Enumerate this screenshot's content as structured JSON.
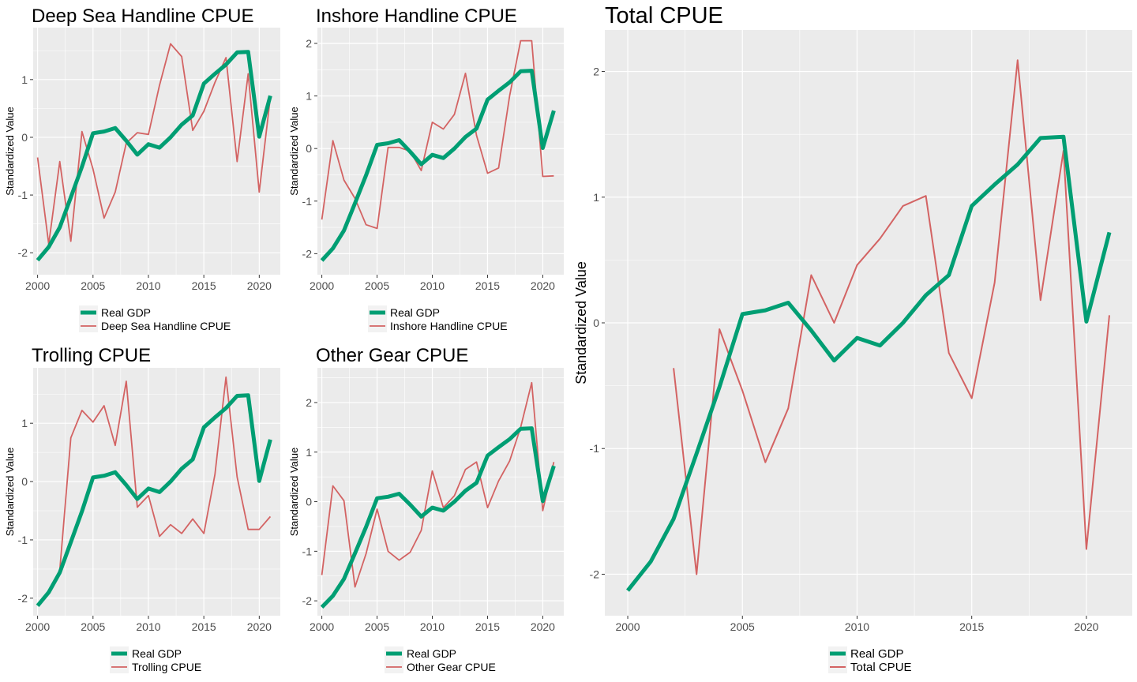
{
  "colors": {
    "gdp": "#009E73",
    "cpue": "#D36363",
    "panel_bg": "#EBEBEB",
    "grid": "#FFFFFF",
    "tick_text": "#4D4D4D",
    "text": "#000000"
  },
  "chart_data": [
    {
      "type": "line",
      "title": "Deep Sea Handline CPUE",
      "ylabel": "Standardized Value",
      "xlabel": "",
      "xlim": [
        1999.6,
        2021.9
      ],
      "ylim": [
        -2.38,
        1.9
      ],
      "x_ticks": [
        2000,
        2005,
        2010,
        2015,
        2020
      ],
      "y_ticks": [
        -2,
        -1,
        0,
        1
      ],
      "grid": true,
      "legend_position": "bottom",
      "series": [
        {
          "name": "Real GDP",
          "x": [
            2000,
            2001,
            2002,
            2003,
            2004,
            2005,
            2006,
            2007,
            2008,
            2009,
            2010,
            2011,
            2012,
            2013,
            2014,
            2015,
            2016,
            2017,
            2018,
            2019,
            2020,
            2021
          ],
          "y": [
            -2.13,
            -1.9,
            -1.56,
            -1.04,
            -0.51,
            0.07,
            0.1,
            0.16,
            -0.06,
            -0.3,
            -0.12,
            -0.18,
            0.0,
            0.22,
            0.38,
            0.93,
            1.1,
            1.26,
            1.47,
            1.48,
            0.01,
            0.72
          ]
        },
        {
          "name": "Deep Sea Handline CPUE",
          "x": [
            2000,
            2001,
            2002,
            2003,
            2004,
            2005,
            2006,
            2007,
            2008,
            2009,
            2010,
            2011,
            2012,
            2013,
            2014,
            2015,
            2016,
            2017,
            2018,
            2019,
            2020,
            2021
          ],
          "y": [
            -0.35,
            -1.85,
            -0.42,
            -1.8,
            0.1,
            -0.55,
            -1.4,
            -0.95,
            -0.1,
            0.08,
            0.05,
            0.9,
            1.62,
            1.4,
            0.12,
            0.45,
            0.95,
            1.38,
            -0.42,
            1.1,
            -0.95,
            0.7
          ]
        }
      ]
    },
    {
      "type": "line",
      "title": "Inshore Handline CPUE",
      "ylabel": "Standardized Value",
      "xlabel": "",
      "xlim": [
        1999.6,
        2021.9
      ],
      "ylim": [
        -2.4,
        2.3
      ],
      "x_ticks": [
        2000,
        2005,
        2010,
        2015,
        2020
      ],
      "y_ticks": [
        -2,
        -1,
        0,
        1,
        2
      ],
      "grid": true,
      "legend_position": "bottom",
      "series": [
        {
          "name": "Real GDP",
          "x": [
            2000,
            2001,
            2002,
            2003,
            2004,
            2005,
            2006,
            2007,
            2008,
            2009,
            2010,
            2011,
            2012,
            2013,
            2014,
            2015,
            2016,
            2017,
            2018,
            2019,
            2020,
            2021
          ],
          "y": [
            -2.13,
            -1.9,
            -1.56,
            -1.04,
            -0.51,
            0.07,
            0.1,
            0.16,
            -0.06,
            -0.3,
            -0.12,
            -0.18,
            0.0,
            0.22,
            0.38,
            0.93,
            1.1,
            1.26,
            1.47,
            1.48,
            0.01,
            0.72
          ]
        },
        {
          "name": "Inshore Handline CPUE",
          "x": [
            2000,
            2001,
            2002,
            2003,
            2004,
            2005,
            2006,
            2007,
            2008,
            2009,
            2010,
            2011,
            2012,
            2013,
            2014,
            2015,
            2016,
            2017,
            2018,
            2019,
            2020,
            2021
          ],
          "y": [
            -1.35,
            0.15,
            -0.6,
            -0.95,
            -1.45,
            -1.52,
            0.02,
            0.02,
            -0.05,
            -0.42,
            0.5,
            0.37,
            0.65,
            1.43,
            0.25,
            -0.47,
            -0.37,
            1.0,
            2.05,
            2.05,
            -0.53,
            -0.52
          ]
        }
      ]
    },
    {
      "type": "line",
      "title": "Trolling CPUE",
      "ylabel": "Standardized Value",
      "xlabel": "",
      "xlim": [
        1999.6,
        2021.9
      ],
      "ylim": [
        -2.3,
        1.95
      ],
      "x_ticks": [
        2000,
        2005,
        2010,
        2015,
        2020
      ],
      "y_ticks": [
        -2,
        -1,
        0,
        1
      ],
      "grid": true,
      "legend_position": "bottom",
      "series": [
        {
          "name": "Real GDP",
          "x": [
            2000,
            2001,
            2002,
            2003,
            2004,
            2005,
            2006,
            2007,
            2008,
            2009,
            2010,
            2011,
            2012,
            2013,
            2014,
            2015,
            2016,
            2017,
            2018,
            2019,
            2020,
            2021
          ],
          "y": [
            -2.13,
            -1.9,
            -1.56,
            -1.04,
            -0.51,
            0.07,
            0.1,
            0.16,
            -0.06,
            -0.3,
            -0.12,
            -0.18,
            0.0,
            0.22,
            0.38,
            0.93,
            1.1,
            1.26,
            1.47,
            1.48,
            0.01,
            0.72
          ]
        },
        {
          "name": "Trolling CPUE",
          "x": [
            2002,
            2003,
            2004,
            2005,
            2006,
            2007,
            2008,
            2009,
            2010,
            2011,
            2012,
            2013,
            2014,
            2015,
            2016,
            2017,
            2018,
            2019,
            2020,
            2021
          ],
          "y": [
            -1.52,
            0.75,
            1.22,
            1.02,
            1.3,
            0.62,
            1.72,
            -0.44,
            -0.24,
            -0.94,
            -0.74,
            -0.89,
            -0.64,
            -0.89,
            0.12,
            1.79,
            0.08,
            -0.82,
            -0.82,
            -0.6
          ]
        }
      ]
    },
    {
      "type": "line",
      "title": "Other Gear CPUE",
      "ylabel": "Standardized Value",
      "xlabel": "",
      "xlim": [
        1999.6,
        2021.9
      ],
      "ylim": [
        -2.3,
        2.7
      ],
      "x_ticks": [
        2000,
        2005,
        2010,
        2015,
        2020
      ],
      "y_ticks": [
        -2,
        -1,
        0,
        1,
        2
      ],
      "grid": true,
      "legend_position": "bottom",
      "series": [
        {
          "name": "Real GDP",
          "x": [
            2000,
            2001,
            2002,
            2003,
            2004,
            2005,
            2006,
            2007,
            2008,
            2009,
            2010,
            2011,
            2012,
            2013,
            2014,
            2015,
            2016,
            2017,
            2018,
            2019,
            2020,
            2021
          ],
          "y": [
            -2.13,
            -1.9,
            -1.56,
            -1.04,
            -0.51,
            0.07,
            0.1,
            0.16,
            -0.06,
            -0.3,
            -0.12,
            -0.18,
            0.0,
            0.22,
            0.38,
            0.93,
            1.1,
            1.26,
            1.47,
            1.48,
            0.01,
            0.72
          ]
        },
        {
          "name": "Other Gear CPUE",
          "x": [
            2000,
            2001,
            2002,
            2003,
            2004,
            2005,
            2006,
            2007,
            2008,
            2009,
            2010,
            2011,
            2012,
            2013,
            2014,
            2015,
            2016,
            2017,
            2018,
            2019,
            2020,
            2021
          ],
          "y": [
            -1.48,
            0.32,
            0.02,
            -1.72,
            -1.05,
            -0.15,
            -1.0,
            -1.18,
            -1.02,
            -0.58,
            0.62,
            -0.12,
            0.12,
            0.65,
            0.8,
            -0.12,
            0.42,
            0.82,
            1.5,
            2.4,
            -0.18,
            0.8
          ]
        }
      ]
    },
    {
      "type": "line",
      "title": "Total CPUE",
      "ylabel": "Standardized Value",
      "xlabel": "",
      "xlim": [
        1999.0,
        2022.0
      ],
      "ylim": [
        -2.33,
        2.33
      ],
      "x_ticks": [
        2000,
        2005,
        2010,
        2015,
        2020
      ],
      "y_ticks": [
        -2,
        -1,
        0,
        1,
        2
      ],
      "grid": true,
      "legend_position": "bottom",
      "series": [
        {
          "name": "Real GDP",
          "x": [
            2000,
            2001,
            2002,
            2003,
            2004,
            2005,
            2006,
            2007,
            2008,
            2009,
            2010,
            2011,
            2012,
            2013,
            2014,
            2015,
            2016,
            2017,
            2018,
            2019,
            2020,
            2021
          ],
          "y": [
            -2.13,
            -1.9,
            -1.56,
            -1.04,
            -0.51,
            0.07,
            0.1,
            0.16,
            -0.06,
            -0.3,
            -0.12,
            -0.18,
            0.0,
            0.22,
            0.38,
            0.93,
            1.1,
            1.26,
            1.47,
            1.48,
            0.01,
            0.72
          ]
        },
        {
          "name": "Total CPUE",
          "x": [
            2002,
            2003,
            2004,
            2005,
            2006,
            2007,
            2008,
            2009,
            2010,
            2011,
            2012,
            2013,
            2014,
            2015,
            2016,
            2017,
            2018,
            2019,
            2020,
            2021
          ],
          "y": [
            -0.36,
            -2.0,
            -0.05,
            -0.54,
            -1.11,
            -0.68,
            0.38,
            0.0,
            0.46,
            0.67,
            0.93,
            1.01,
            -0.24,
            -0.6,
            0.32,
            2.09,
            0.18,
            1.37,
            -1.8,
            0.06
          ]
        }
      ]
    }
  ]
}
